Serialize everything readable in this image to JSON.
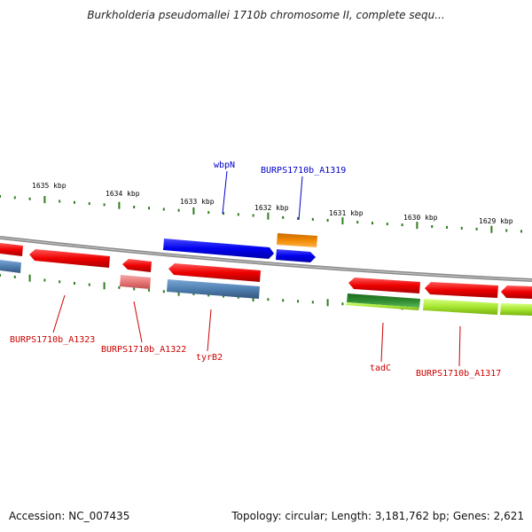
{
  "title": "Burkholderia pseudomallei 1710b chromosome II, complete sequ...",
  "accession": "Accession: NC_007435",
  "summary": "Topology: circular; Length: 3,181,762 bp; Genes: 2,621",
  "ticks": [
    "1635 kbp",
    "1634 kbp",
    "1633 kbp",
    "1632 kbp",
    "1631 kbp",
    "1630 kbp",
    "1629 kbp"
  ],
  "gene_labels": {
    "wbpN": "wbpN",
    "burps_a1319": "BURPS1710b_A1319",
    "burps_a1323": "BURPS1710b_A1323",
    "burps_a1322": "BURPS1710b_A1322",
    "tyrB2": "tyrB2",
    "tadC": "tadC",
    "burps_a1317": "BURPS1710b_A1317"
  },
  "colors": {
    "backbone": "#8a8a8a",
    "tick": "#2e7d1e",
    "forward_gene": "#0000ee",
    "reverse_gene": "#ee0000",
    "pink_gene": "#e87878",
    "steelblue_gene": "#4f7fb0",
    "orange_gene": "#f08a00",
    "darkgreen_gene": "#2e8a2e",
    "lightgreen_gene": "#a6e630",
    "label_blue": "#0000cc",
    "label_red": "#cc0000"
  }
}
